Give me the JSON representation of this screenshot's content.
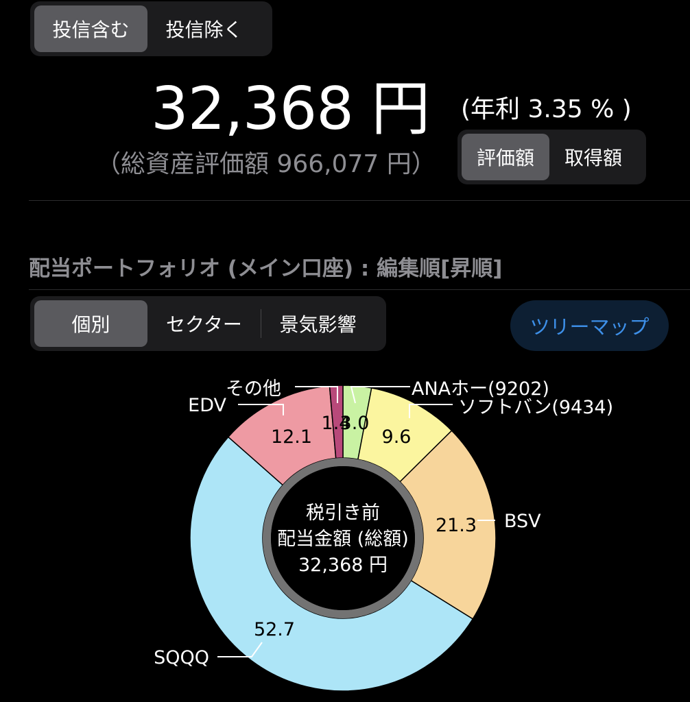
{
  "fund_toggle": {
    "include": "投信含む",
    "exclude": "投信除く"
  },
  "summary": {
    "amount": "32,368 円",
    "annual_yield": "(年利 3.35 % )",
    "total_assets": "（総資産評価額 966,077 円）"
  },
  "value_toggle": {
    "valuation": "評価額",
    "acquisition": "取得額"
  },
  "section_title": "配当ポートフォリオ (メイン口座) : 編集順[昇順]",
  "view_toggle": {
    "individual": "個別",
    "sector": "セクター",
    "economy": "景気影響"
  },
  "treemap_button": "ツリーマップ",
  "chart_data": {
    "type": "pie",
    "center_label": [
      "税引き前",
      "配当金額 (総額)",
      "32,368 円"
    ],
    "slices": [
      {
        "name": "ANAホー(9202)",
        "value": 3.0,
        "label": "3.0",
        "color": "#c9f2a3"
      },
      {
        "name": "ソフトバン(9434)",
        "value": 9.6,
        "label": "9.6",
        "color": "#fbf59f"
      },
      {
        "name": "BSV",
        "value": 21.3,
        "label": "21.3",
        "color": "#f7d59b"
      },
      {
        "name": "SQQQ",
        "value": 52.7,
        "label": "52.7",
        "color": "#ade5f7"
      },
      {
        "name": "EDV",
        "value": 12.1,
        "label": "12.1",
        "color": "#ee9aa3"
      },
      {
        "name": "その他",
        "value": 1.4,
        "label": "1.4",
        "color": "#b8497a"
      }
    ]
  }
}
